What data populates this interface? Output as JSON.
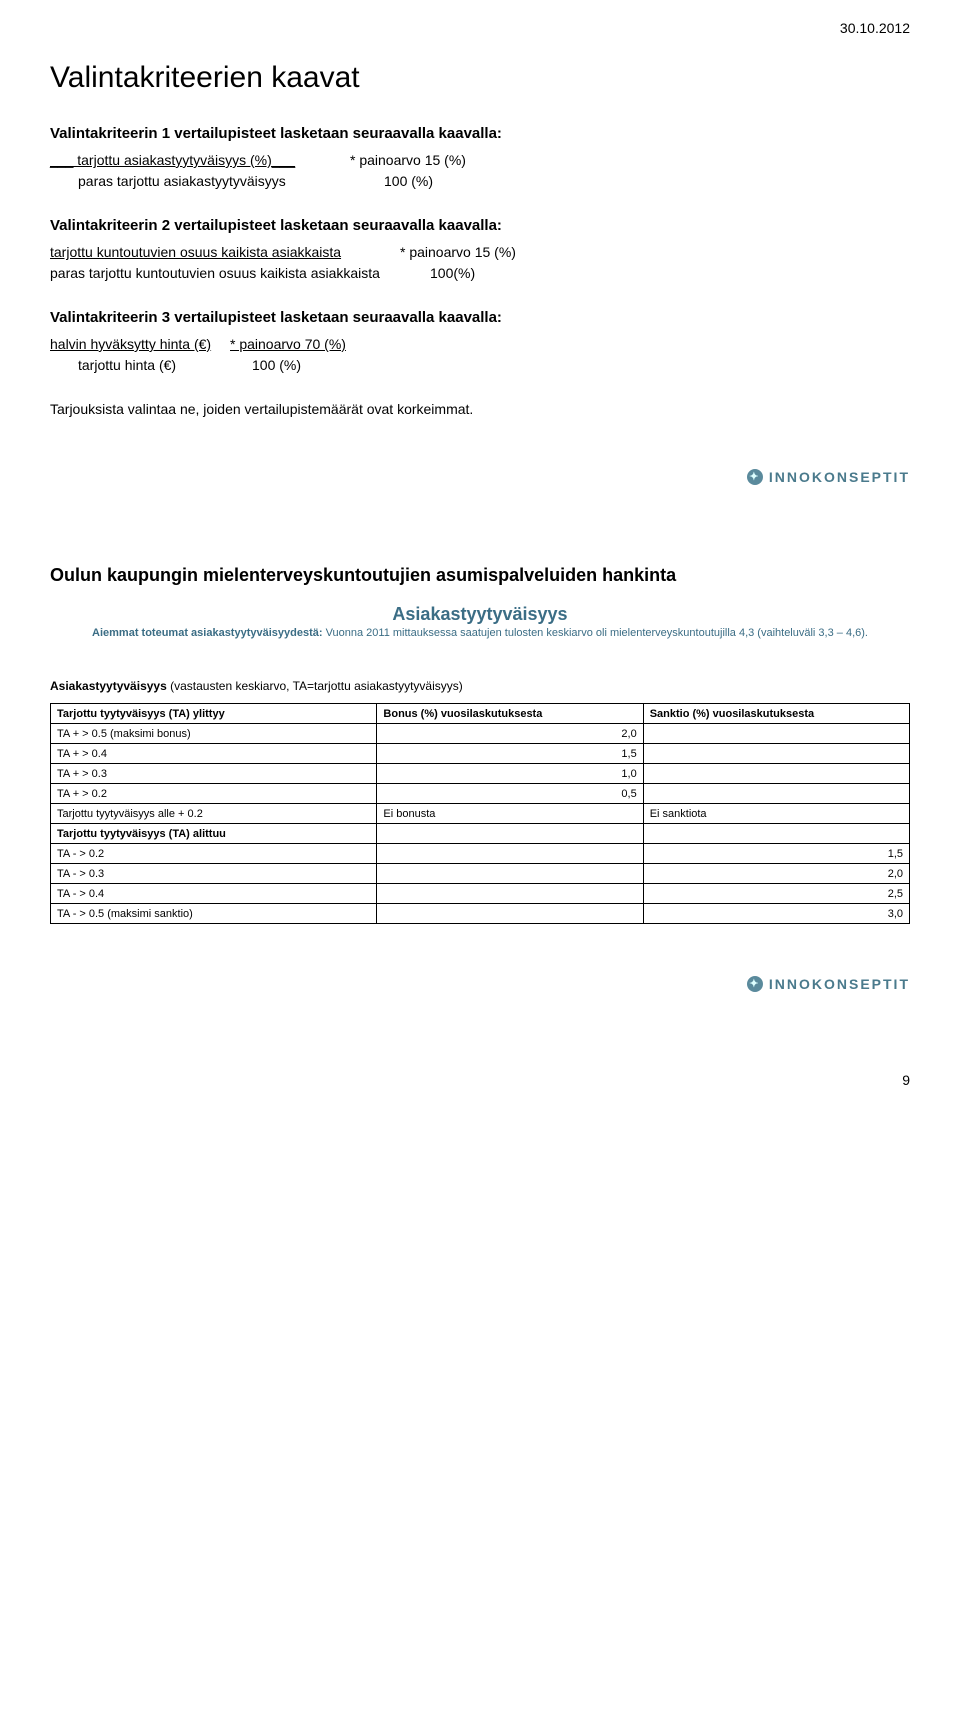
{
  "header": {
    "date": "30.10.2012"
  },
  "section1": {
    "title": "Valintakriteerien kaavat",
    "criterion1": {
      "heading": "Valintakriteerin 1 vertailupisteet lasketaan seuraavalla kaavalla:",
      "line1_left": "___ tarjottu asiakastyytyväisyys (%)___",
      "line1_right": " *   painoarvo 15 (%)",
      "line2_left": "paras tarjottu asiakastyytyväisyys",
      "line2_right": "100 (%)"
    },
    "criterion2": {
      "heading": "Valintakriteerin 2 vertailupisteet lasketaan seuraavalla kaavalla:",
      "line1_left": "tarjottu kuntoutuvien osuus kaikista asiakkaista",
      "line1_right": "*   painoarvo 15 (%)",
      "line2_left": "paras tarjottu kuntoutuvien osuus kaikista asiakkaista",
      "line2_right": "100(%)"
    },
    "criterion3": {
      "heading": "Valintakriteerin 3 vertailupisteet lasketaan seuraavalla kaavalla:",
      "line1_left": "halvin hyväksytty hinta (€)",
      "line1_right": " * painoarvo 70 (%)",
      "line2_left": "tarjottu hinta (€)",
      "line2_right": "100 (%)"
    },
    "conclusion": "Tarjouksista valintaa ne, joiden vertailupistemäärät ovat korkeimmat."
  },
  "logo": {
    "text": "INNOKONSEPTIT",
    "icon_glyph": "✦"
  },
  "section2": {
    "title": "Oulun kaupungin mielenterveyskuntoutujien asumispalveluiden hankinta",
    "subtitle": "Asiakastyytyväisyys",
    "note_prefix": "Aiemmat toteumat asiakastyytyväisyydestä:",
    "note_rest": " Vuonna 2011 mittauksessa saatujen tulosten keskiarvo oli mielenterveyskuntoutujilla 4,3 (vaihteluväli 3,3 – 4,6).",
    "table_caption_bold": "Asiakastyytyväisyys",
    "table_caption_rest": " (vastausten keskiarvo, TA=tarjottu asiakastyytyväisyys)",
    "columns": [
      "Tarjottu tyytyväisyys (TA) ylittyy",
      "Bonus (%) vuosilaskutuksesta",
      "Sanktio (%) vuosilaskutuksesta"
    ],
    "rows_top": [
      {
        "label": "TA + > 0.5     (maksimi bonus)",
        "bonus": "2,0",
        "sanction": ""
      },
      {
        "label": "TA + > 0.4",
        "bonus": "1,5",
        "sanction": ""
      },
      {
        "label": "TA + > 0.3",
        "bonus": "1,0",
        "sanction": ""
      },
      {
        "label": "TA + > 0.2",
        "bonus": "0,5",
        "sanction": ""
      }
    ],
    "mid_row": {
      "label": "Tarjottu tyytyväisyys alle + 0.2",
      "bonus": "Ei bonusta",
      "sanction": "Ei sanktiota"
    },
    "rows_bot_header": "Tarjottu tyytyväisyys (TA) alittuu",
    "rows_bot": [
      {
        "label": "TA - > 0.2",
        "bonus": "",
        "sanction": "1,5"
      },
      {
        "label": "TA - > 0.3",
        "bonus": "",
        "sanction": "2,0"
      },
      {
        "label": "TA - > 0.4",
        "bonus": "",
        "sanction": "2,5"
      },
      {
        "label": "TA - > 0.5     (maksimi sanktio)",
        "bonus": "",
        "sanction": "3,0"
      }
    ]
  },
  "footer": {
    "page": "9"
  },
  "styles": {
    "title_fontsize": 30,
    "body_fontsize": 14,
    "table_fontsize": 11,
    "accent_color": "#3b6d85",
    "logo_color": "#4a7a8c",
    "border_color": "#000000",
    "background_color": "#ffffff"
  }
}
